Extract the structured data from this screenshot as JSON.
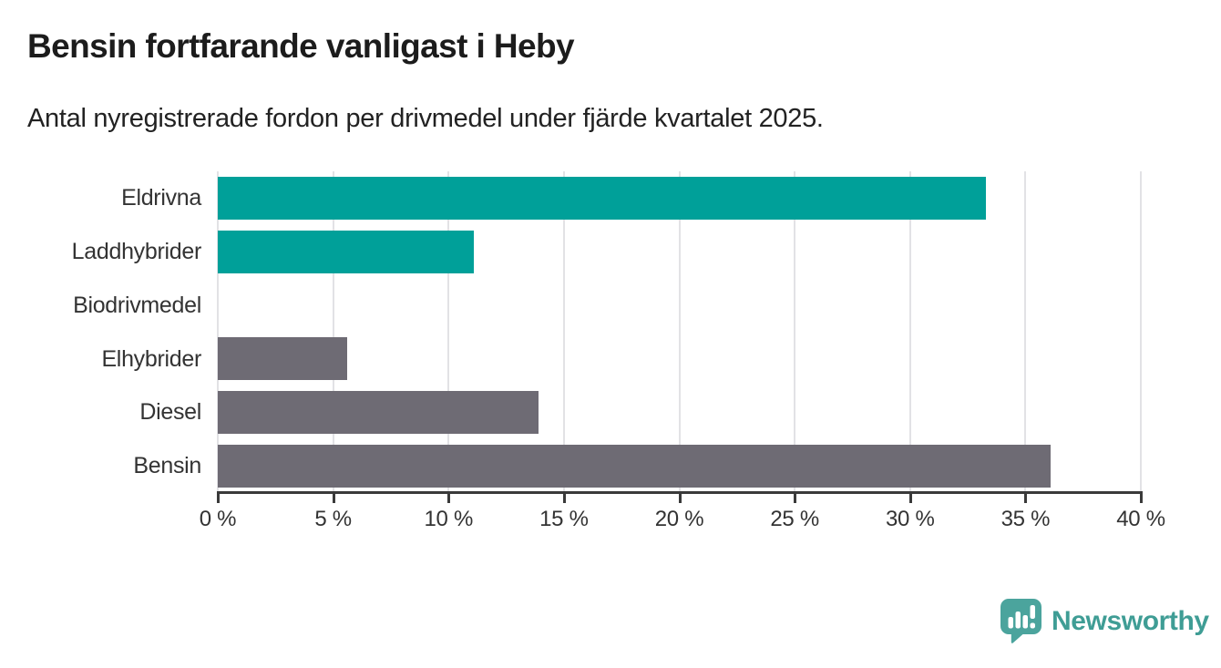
{
  "header": {
    "title": "Bensin fortfarande vanligast i Heby",
    "subtitle": "Antal nyregistrerade fordon per drivmedel under fjärde kvartalet 2025."
  },
  "chart_data": {
    "type": "bar",
    "orientation": "horizontal",
    "title": "Bensin fortfarande vanligast i Heby",
    "subtitle": "Antal nyregistrerade fordon per drivmedel under fjärde kvartalet 2025.",
    "categories": [
      "Eldrivna",
      "Laddhybrider",
      "Biodrivmedel",
      "Elhybrider",
      "Diesel",
      "Bensin"
    ],
    "values": [
      33.3,
      11.1,
      0,
      5.6,
      13.9,
      36.1
    ],
    "bar_colors": [
      "#00A099",
      "#00A099",
      "#00A099",
      "#6E6B74",
      "#6E6B74",
      "#6E6B74"
    ],
    "unit": "%",
    "xlabel": "",
    "ylabel": "",
    "xlim": [
      0,
      40
    ],
    "xticks": [
      0,
      5,
      10,
      15,
      20,
      25,
      30,
      35,
      40
    ],
    "xtick_labels": [
      "0 %",
      "5 %",
      "10 %",
      "15 %",
      "20 %",
      "25 %",
      "30 %",
      "35 %",
      "40 %"
    ],
    "grid": "vertical",
    "legend": "none",
    "colors": {
      "teal": "#00A099",
      "gray": "#6E6B74",
      "gridline": "#E2E2E5",
      "axis": "#3A3A3A",
      "label": "#333333"
    }
  },
  "branding": {
    "name": "Newsworthy",
    "icon": "bar-chart-speech-bubble-icon",
    "icon_color": "#4BA49D",
    "text_color": "#3F9D95"
  }
}
